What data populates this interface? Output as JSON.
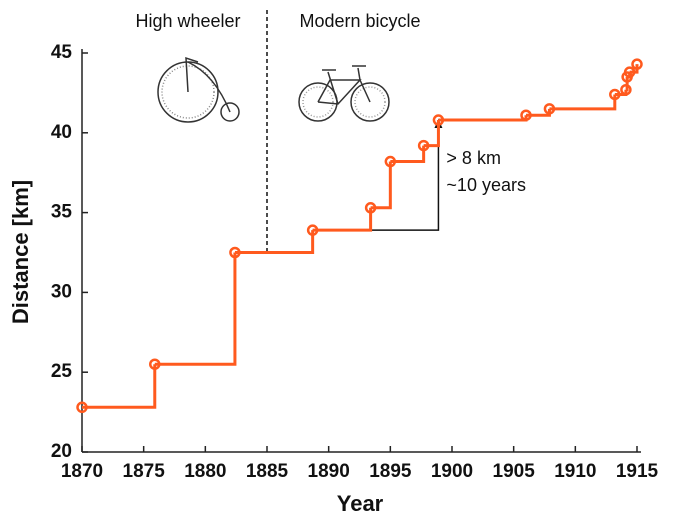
{
  "chart_data": {
    "type": "line",
    "step": "post",
    "xlabel": "Year",
    "ylabel": "Distance [km]",
    "x": [
      1870.0,
      1875.9,
      1882.4,
      1888.7,
      1893.4,
      1895.0,
      1897.7,
      1898.9,
      1906.0,
      1907.9,
      1913.2,
      1914.1,
      1914.2,
      1914.4,
      1915.0
    ],
    "series": [
      {
        "color": "#ff5a1e",
        "values": [
          22.8,
          25.5,
          32.5,
          33.9,
          35.3,
          38.2,
          39.2,
          40.8,
          41.1,
          41.5,
          42.4,
          42.7,
          43.5,
          43.8,
          44.3
        ]
      }
    ],
    "xlim": [
      1870,
      1915
    ],
    "xticks": [
      1870,
      1875,
      1880,
      1885,
      1890,
      1895,
      1900,
      1905,
      1910,
      1915
    ],
    "ylim": [
      20,
      45
    ],
    "yticks": [
      20,
      25,
      30,
      35,
      40,
      45
    ],
    "grid": false,
    "divider_year": 1885,
    "annotations": {
      "left_era": "High wheeler",
      "right_era": "Modern bicycle",
      "gain": "> 8 km",
      "span": "~10 years"
    }
  }
}
